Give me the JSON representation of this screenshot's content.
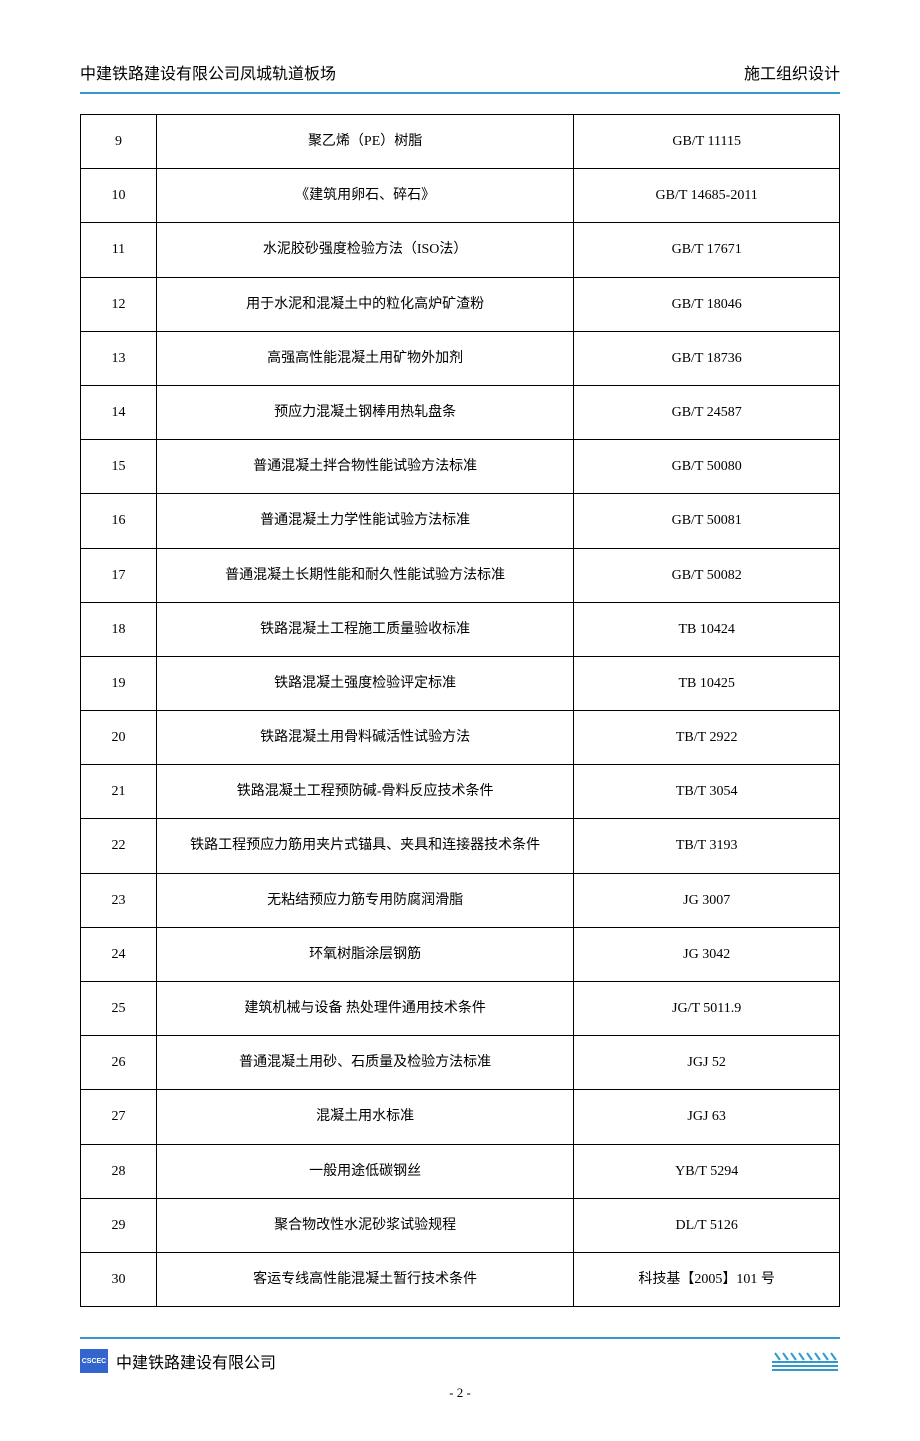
{
  "header": {
    "left": "中建铁路建设有限公司凤城轨道板场",
    "right": "施工组织设计"
  },
  "table": {
    "rows": [
      {
        "num": "9",
        "name": "聚乙烯（PE）树脂",
        "code": "GB/T 11115"
      },
      {
        "num": "10",
        "name": "《建筑用卵石、碎石》",
        "code": "GB/T 14685-2011"
      },
      {
        "num": "11",
        "name": "水泥胶砂强度检验方法（ISO法）",
        "code": "GB/T 17671"
      },
      {
        "num": "12",
        "name": "用于水泥和混凝土中的粒化高炉矿渣粉",
        "code": "GB/T 18046"
      },
      {
        "num": "13",
        "name": "高强高性能混凝土用矿物外加剂",
        "code": "GB/T 18736"
      },
      {
        "num": "14",
        "name": "预应力混凝土钢棒用热轧盘条",
        "code": "GB/T 24587"
      },
      {
        "num": "15",
        "name": "普通混凝土拌合物性能试验方法标准",
        "code": "GB/T 50080"
      },
      {
        "num": "16",
        "name": "普通混凝土力学性能试验方法标准",
        "code": "GB/T 50081"
      },
      {
        "num": "17",
        "name": "普通混凝土长期性能和耐久性能试验方法标准",
        "code": "GB/T 50082"
      },
      {
        "num": "18",
        "name": "铁路混凝土工程施工质量验收标准",
        "code": "TB 10424"
      },
      {
        "num": "19",
        "name": "铁路混凝土强度检验评定标准",
        "code": "TB 10425"
      },
      {
        "num": "20",
        "name": "铁路混凝土用骨料碱活性试验方法",
        "code": "TB/T 2922"
      },
      {
        "num": "21",
        "name": "铁路混凝土工程预防碱-骨料反应技术条件",
        "code": "TB/T 3054"
      },
      {
        "num": "22",
        "name": "铁路工程预应力筋用夹片式锚具、夹具和连接器技术条件",
        "code": "TB/T 3193"
      },
      {
        "num": "23",
        "name": "无粘结预应力筋专用防腐润滑脂",
        "code": "JG 3007"
      },
      {
        "num": "24",
        "name": "环氧树脂涂层钢筋",
        "code": "JG 3042"
      },
      {
        "num": "25",
        "name": "建筑机械与设备 热处理件通用技术条件",
        "code": "JG/T 5011.9"
      },
      {
        "num": "26",
        "name": "普通混凝土用砂、石质量及检验方法标准",
        "code": "JGJ 52"
      },
      {
        "num": "27",
        "name": "混凝土用水标准",
        "code": "JGJ 63"
      },
      {
        "num": "28",
        "name": "一般用途低碳钢丝",
        "code": "YB/T 5294"
      },
      {
        "num": "29",
        "name": "聚合物改性水泥砂浆试验规程",
        "code": "DL/T 5126"
      },
      {
        "num": "30",
        "name": "客运专线高性能混凝土暂行技术条件",
        "code": "科技基【2005】101 号"
      }
    ]
  },
  "footer": {
    "logo_text": "CSCEC",
    "company": "中建铁路建设有限公司",
    "page_number": "- 2 -"
  },
  "colors": {
    "header_line": "#3399cc",
    "border": "#000000",
    "text": "#000000",
    "logo_bg": "#3366cc",
    "decoration": "#3399cc"
  }
}
